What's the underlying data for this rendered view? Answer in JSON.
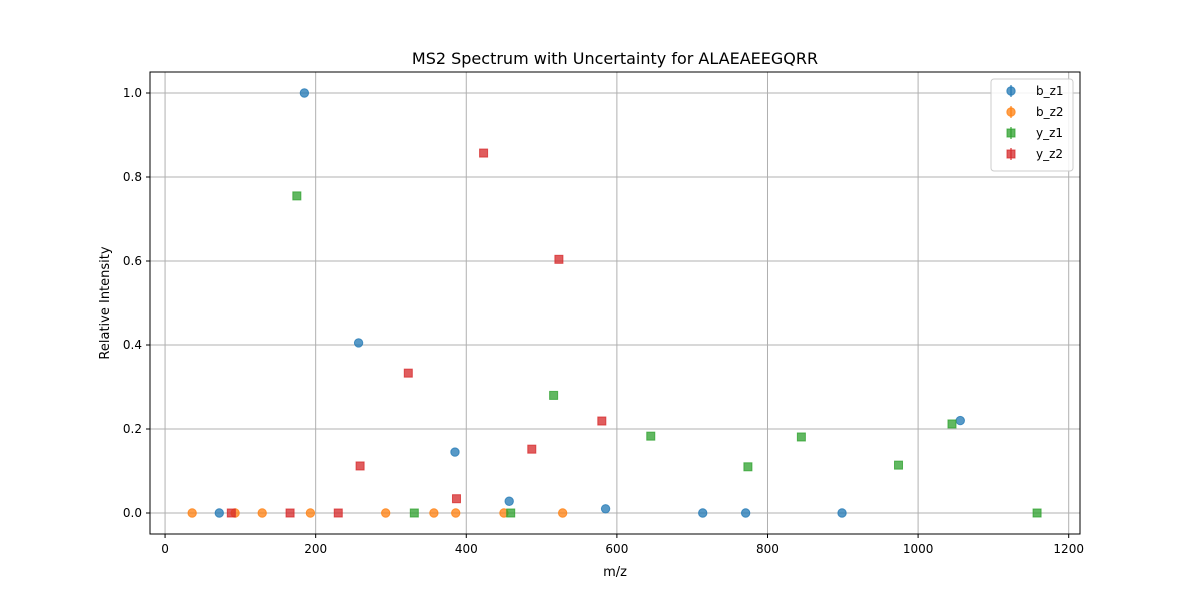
{
  "chart_data": {
    "type": "scatter",
    "title": "MS2 Spectrum with Uncertainty for ALAEAEEGQRR",
    "xlabel": "m/z",
    "ylabel": "Relative Intensity",
    "xlim": [
      -20,
      1215
    ],
    "ylim": [
      -0.05,
      1.05
    ],
    "xticks": [
      0,
      200,
      400,
      600,
      800,
      1000,
      1200
    ],
    "xtick_labels": [
      "0",
      "200",
      "400",
      "600",
      "800",
      "1000",
      "1200"
    ],
    "yticks": [
      0.0,
      0.2,
      0.4,
      0.6,
      0.8,
      1.0
    ],
    "ytick_labels": [
      "0.0",
      "0.2",
      "0.4",
      "0.6",
      "0.8",
      "1.0"
    ],
    "grid": true,
    "legend_position": "top-right",
    "series": [
      {
        "name": "b_z1",
        "color": "#1f77b4",
        "marker": "circle",
        "points": [
          [
            72,
            0.0
          ],
          [
            185,
            1.0
          ],
          [
            257,
            0.405
          ],
          [
            385,
            0.145
          ],
          [
            457,
            0.028
          ],
          [
            585,
            0.01
          ],
          [
            714,
            0.0
          ],
          [
            771,
            0.0
          ],
          [
            899,
            0.0
          ],
          [
            1056,
            0.22
          ]
        ]
      },
      {
        "name": "b_z2",
        "color": "#ff7f0e",
        "marker": "circle",
        "points": [
          [
            36,
            0.0
          ],
          [
            93,
            0.0
          ],
          [
            129,
            0.0
          ],
          [
            193,
            0.0
          ],
          [
            293,
            0.0
          ],
          [
            357,
            0.0
          ],
          [
            386,
            0.0
          ],
          [
            450,
            0.0
          ],
          [
            528,
            0.0
          ]
        ]
      },
      {
        "name": "y_z1",
        "color": "#2ca02c",
        "marker": "square",
        "points": [
          [
            175,
            0.755
          ],
          [
            331,
            0.0
          ],
          [
            459,
            0.0
          ],
          [
            516,
            0.28
          ],
          [
            645,
            0.183
          ],
          [
            774,
            0.11
          ],
          [
            845,
            0.181
          ],
          [
            974,
            0.114
          ],
          [
            1045,
            0.212
          ],
          [
            1158,
            0.0
          ]
        ]
      },
      {
        "name": "y_z2",
        "color": "#d62728",
        "marker": "square",
        "points": [
          [
            88,
            0.0
          ],
          [
            166,
            0.0
          ],
          [
            230,
            0.0
          ],
          [
            259,
            0.112
          ],
          [
            323,
            0.333
          ],
          [
            387,
            0.034
          ],
          [
            423,
            0.857
          ],
          [
            487,
            0.152
          ],
          [
            523,
            0.604
          ],
          [
            580,
            0.219
          ]
        ]
      }
    ]
  }
}
